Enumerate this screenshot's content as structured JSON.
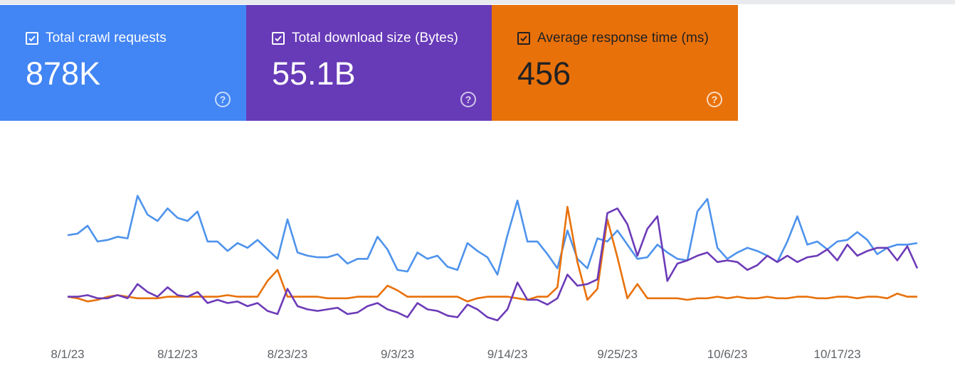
{
  "cards": [
    {
      "label": "Total crawl requests",
      "value": "878K",
      "checked": true,
      "color": "#4285f4"
    },
    {
      "label": "Total download size (Bytes)",
      "value": "55.1B",
      "checked": true,
      "color": "#673ab7"
    },
    {
      "label": "Average response time (ms)",
      "value": "456",
      "checked": true,
      "color": "#e8710a"
    }
  ],
  "help_glyph": "?",
  "chart_data": {
    "type": "line",
    "x_start": "8/1/23",
    "x_ticks": [
      "8/1/23",
      "8/12/23",
      "8/23/23",
      "9/3/23",
      "9/14/23",
      "9/25/23",
      "10/6/23",
      "10/17/23"
    ],
    "x_tick_interval_days": 11,
    "grid": false,
    "legend": "none",
    "series": [
      {
        "name": "Total crawl requests",
        "color": "#4e93ec",
        "values": [
          0.59,
          0.6,
          0.65,
          0.55,
          0.56,
          0.58,
          0.57,
          0.84,
          0.72,
          0.68,
          0.76,
          0.7,
          0.68,
          0.74,
          0.55,
          0.55,
          0.49,
          0.54,
          0.51,
          0.56,
          0.5,
          0.44,
          0.69,
          0.48,
          0.46,
          0.45,
          0.45,
          0.47,
          0.41,
          0.44,
          0.44,
          0.58,
          0.5,
          0.37,
          0.36,
          0.48,
          0.44,
          0.46,
          0.39,
          0.37,
          0.54,
          0.49,
          0.45,
          0.34,
          0.59,
          0.81,
          0.55,
          0.55,
          0.47,
          0.38,
          0.62,
          0.44,
          0.38,
          0.57,
          0.55,
          0.62,
          0.53,
          0.44,
          0.45,
          0.53,
          0.48,
          0.44,
          0.43,
          0.74,
          0.82,
          0.51,
          0.44,
          0.48,
          0.51,
          0.49,
          0.46,
          0.42,
          0.55,
          0.71,
          0.53,
          0.55,
          0.5,
          0.55,
          0.56,
          0.61,
          0.56,
          0.47,
          0.51,
          0.53,
          0.53,
          0.54
        ]
      },
      {
        "name": "Total download size (Bytes)",
        "color": "#e8710a",
        "values": [
          0.2,
          0.19,
          0.17,
          0.18,
          0.2,
          0.21,
          0.2,
          0.19,
          0.19,
          0.19,
          0.2,
          0.2,
          0.2,
          0.2,
          0.2,
          0.2,
          0.21,
          0.2,
          0.2,
          0.2,
          0.3,
          0.37,
          0.2,
          0.2,
          0.2,
          0.2,
          0.19,
          0.19,
          0.19,
          0.2,
          0.2,
          0.2,
          0.27,
          0.24,
          0.2,
          0.2,
          0.2,
          0.2,
          0.2,
          0.2,
          0.17,
          0.19,
          0.2,
          0.2,
          0.2,
          0.19,
          0.18,
          0.2,
          0.2,
          0.26,
          0.77,
          0.42,
          0.18,
          0.25,
          0.69,
          0.45,
          0.19,
          0.28,
          0.19,
          0.19,
          0.19,
          0.19,
          0.18,
          0.19,
          0.19,
          0.2,
          0.19,
          0.2,
          0.19,
          0.19,
          0.2,
          0.19,
          0.19,
          0.2,
          0.2,
          0.19,
          0.19,
          0.2,
          0.2,
          0.19,
          0.2,
          0.2,
          0.19,
          0.22,
          0.2,
          0.2
        ]
      },
      {
        "name": "Average response time (ms)",
        "color": "#6c3bb8",
        "values": [
          0.2,
          0.2,
          0.21,
          0.19,
          0.19,
          0.21,
          0.19,
          0.28,
          0.23,
          0.2,
          0.26,
          0.21,
          0.2,
          0.23,
          0.16,
          0.18,
          0.16,
          0.17,
          0.14,
          0.16,
          0.11,
          0.09,
          0.25,
          0.14,
          0.12,
          0.11,
          0.12,
          0.13,
          0.09,
          0.1,
          0.14,
          0.16,
          0.12,
          0.1,
          0.07,
          0.16,
          0.12,
          0.11,
          0.08,
          0.07,
          0.15,
          0.12,
          0.07,
          0.05,
          0.12,
          0.29,
          0.18,
          0.18,
          0.15,
          0.19,
          0.34,
          0.27,
          0.28,
          0.31,
          0.73,
          0.76,
          0.66,
          0.46,
          0.63,
          0.71,
          0.3,
          0.41,
          0.43,
          0.46,
          0.48,
          0.42,
          0.43,
          0.42,
          0.37,
          0.4,
          0.46,
          0.42,
          0.46,
          0.42,
          0.45,
          0.46,
          0.5,
          0.43,
          0.53,
          0.46,
          0.49,
          0.51,
          0.51,
          0.43,
          0.52,
          0.38
        ]
      }
    ],
    "y_max": 1
  }
}
